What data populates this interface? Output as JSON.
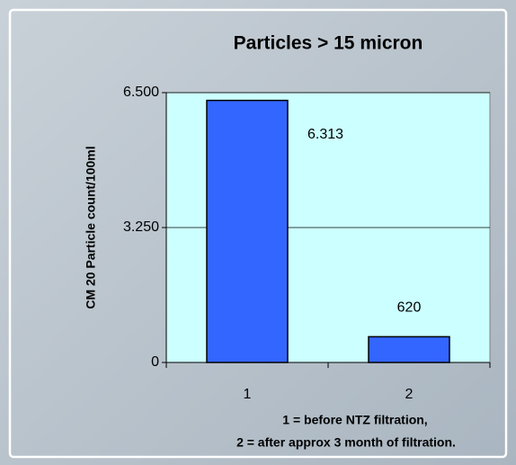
{
  "chart_data": {
    "type": "bar",
    "title": "Particles > 15 micron",
    "ylabel": "CM 20 Particle count/100ml",
    "xlabel": [
      "1 = before NTZ filtration,",
      "2 = after approx 3 month of filtration."
    ],
    "categories": [
      "1",
      "2"
    ],
    "values": [
      6313,
      620
    ],
    "value_labels": [
      "6.313",
      "620"
    ],
    "color": "#3366ff",
    "ylim": [
      0,
      6500
    ],
    "yticks": [
      0,
      {
        "value": 3250,
        "label": "3.250"
      },
      {
        "value": 6500,
        "label": "6.500"
      }
    ],
    "grid": true
  }
}
